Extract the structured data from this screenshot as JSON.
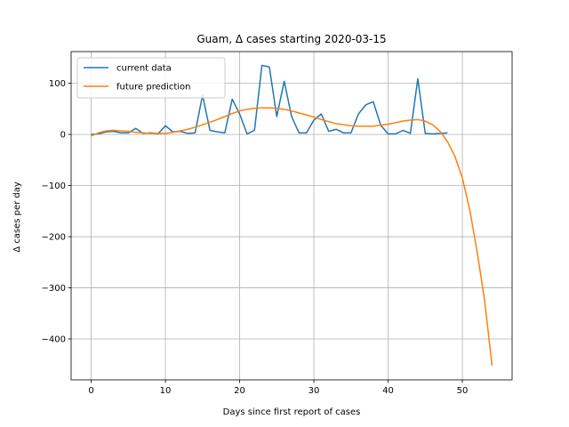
{
  "chart_data": {
    "type": "line",
    "title": "Guam, Δ cases starting 2020-03-15",
    "xlabel": "Days since first report of cases",
    "ylabel": "Δ cases per day",
    "xlim": [
      -2.7,
      56.7
    ],
    "ylim": [
      -480,
      162
    ],
    "x_ticks": [
      0,
      10,
      20,
      30,
      40,
      50
    ],
    "x_tick_labels": [
      "0",
      "10",
      "20",
      "30",
      "40",
      "50"
    ],
    "y_ticks": [
      100,
      0,
      -100,
      -200,
      -300,
      -400
    ],
    "y_tick_labels": [
      "100",
      "0",
      "−100",
      "−200",
      "−300",
      "−400"
    ],
    "grid": true,
    "legend_position": "top-left",
    "series": [
      {
        "name": "current data",
        "color": "#1f77b4",
        "x": [
          0,
          1,
          2,
          3,
          4,
          5,
          6,
          7,
          8,
          9,
          10,
          11,
          12,
          13,
          14,
          15,
          16,
          17,
          18,
          19,
          20,
          21,
          22,
          23,
          24,
          25,
          26,
          27,
          28,
          29,
          30,
          31,
          32,
          33,
          34,
          35,
          36,
          37,
          38,
          39,
          40,
          41,
          42,
          43,
          44,
          45,
          46,
          47,
          48
        ],
        "y": [
          0,
          1,
          5,
          6,
          3,
          3,
          12,
          2,
          3,
          1,
          17,
          5,
          6,
          2,
          3,
          77,
          8,
          5,
          3,
          69,
          40,
          1,
          8,
          135,
          132,
          35,
          104,
          35,
          3,
          3,
          28,
          40,
          6,
          10,
          3,
          3,
          40,
          58,
          64,
          18,
          1,
          1,
          8,
          2,
          109,
          2,
          1,
          2,
          3
        ]
      },
      {
        "name": "future prediction",
        "color": "#ff7f0e",
        "x": [
          0,
          1,
          2,
          3,
          4,
          5,
          6,
          7,
          8,
          9,
          10,
          11,
          12,
          13,
          14,
          15,
          16,
          17,
          18,
          19,
          20,
          21,
          22,
          23,
          24,
          25,
          26,
          27,
          28,
          29,
          30,
          31,
          32,
          33,
          34,
          35,
          36,
          37,
          38,
          39,
          40,
          41,
          42,
          43,
          44,
          45,
          46,
          47,
          48,
          49,
          50,
          51,
          52,
          53,
          54
        ],
        "y": [
          -3,
          3,
          7,
          8,
          7,
          6,
          4,
          3,
          2,
          2,
          2,
          4,
          7,
          10,
          14,
          19,
          24,
          29,
          35,
          41,
          46,
          49,
          51,
          52,
          52,
          51,
          49,
          46,
          42,
          38,
          34,
          29,
          25,
          21,
          19,
          17,
          16,
          16,
          16,
          18,
          20,
          23,
          26,
          28,
          29,
          26,
          19,
          6,
          -14,
          -43,
          -85,
          -148,
          -230,
          -325,
          -452
        ]
      }
    ]
  }
}
